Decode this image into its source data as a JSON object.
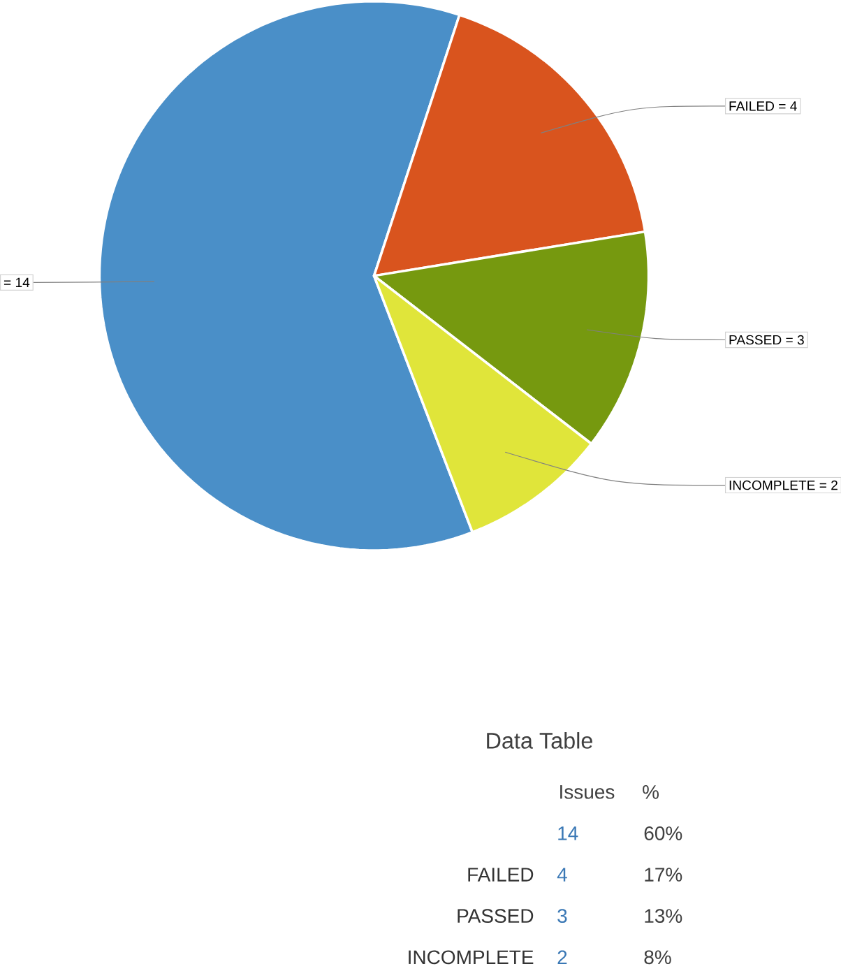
{
  "chart_data": {
    "type": "pie",
    "categories": [
      null,
      "FAILED",
      "PASSED",
      "INCOMPLETE"
    ],
    "values": [
      14,
      4,
      3,
      2
    ],
    "colors": [
      "#4a8fc8",
      "#d9541e",
      "#76990f",
      "#e0e53a"
    ],
    "value_labels": [
      "= 14",
      "= 4",
      "= 3",
      "= 2"
    ],
    "annotations": [
      "Data Table",
      "Issues",
      "%",
      "14",
      "60%",
      "FAILED",
      "4",
      "17%",
      "PASSED",
      "3",
      "13%",
      "INCOMPLETE",
      "2",
      "8%"
    ]
  }
}
